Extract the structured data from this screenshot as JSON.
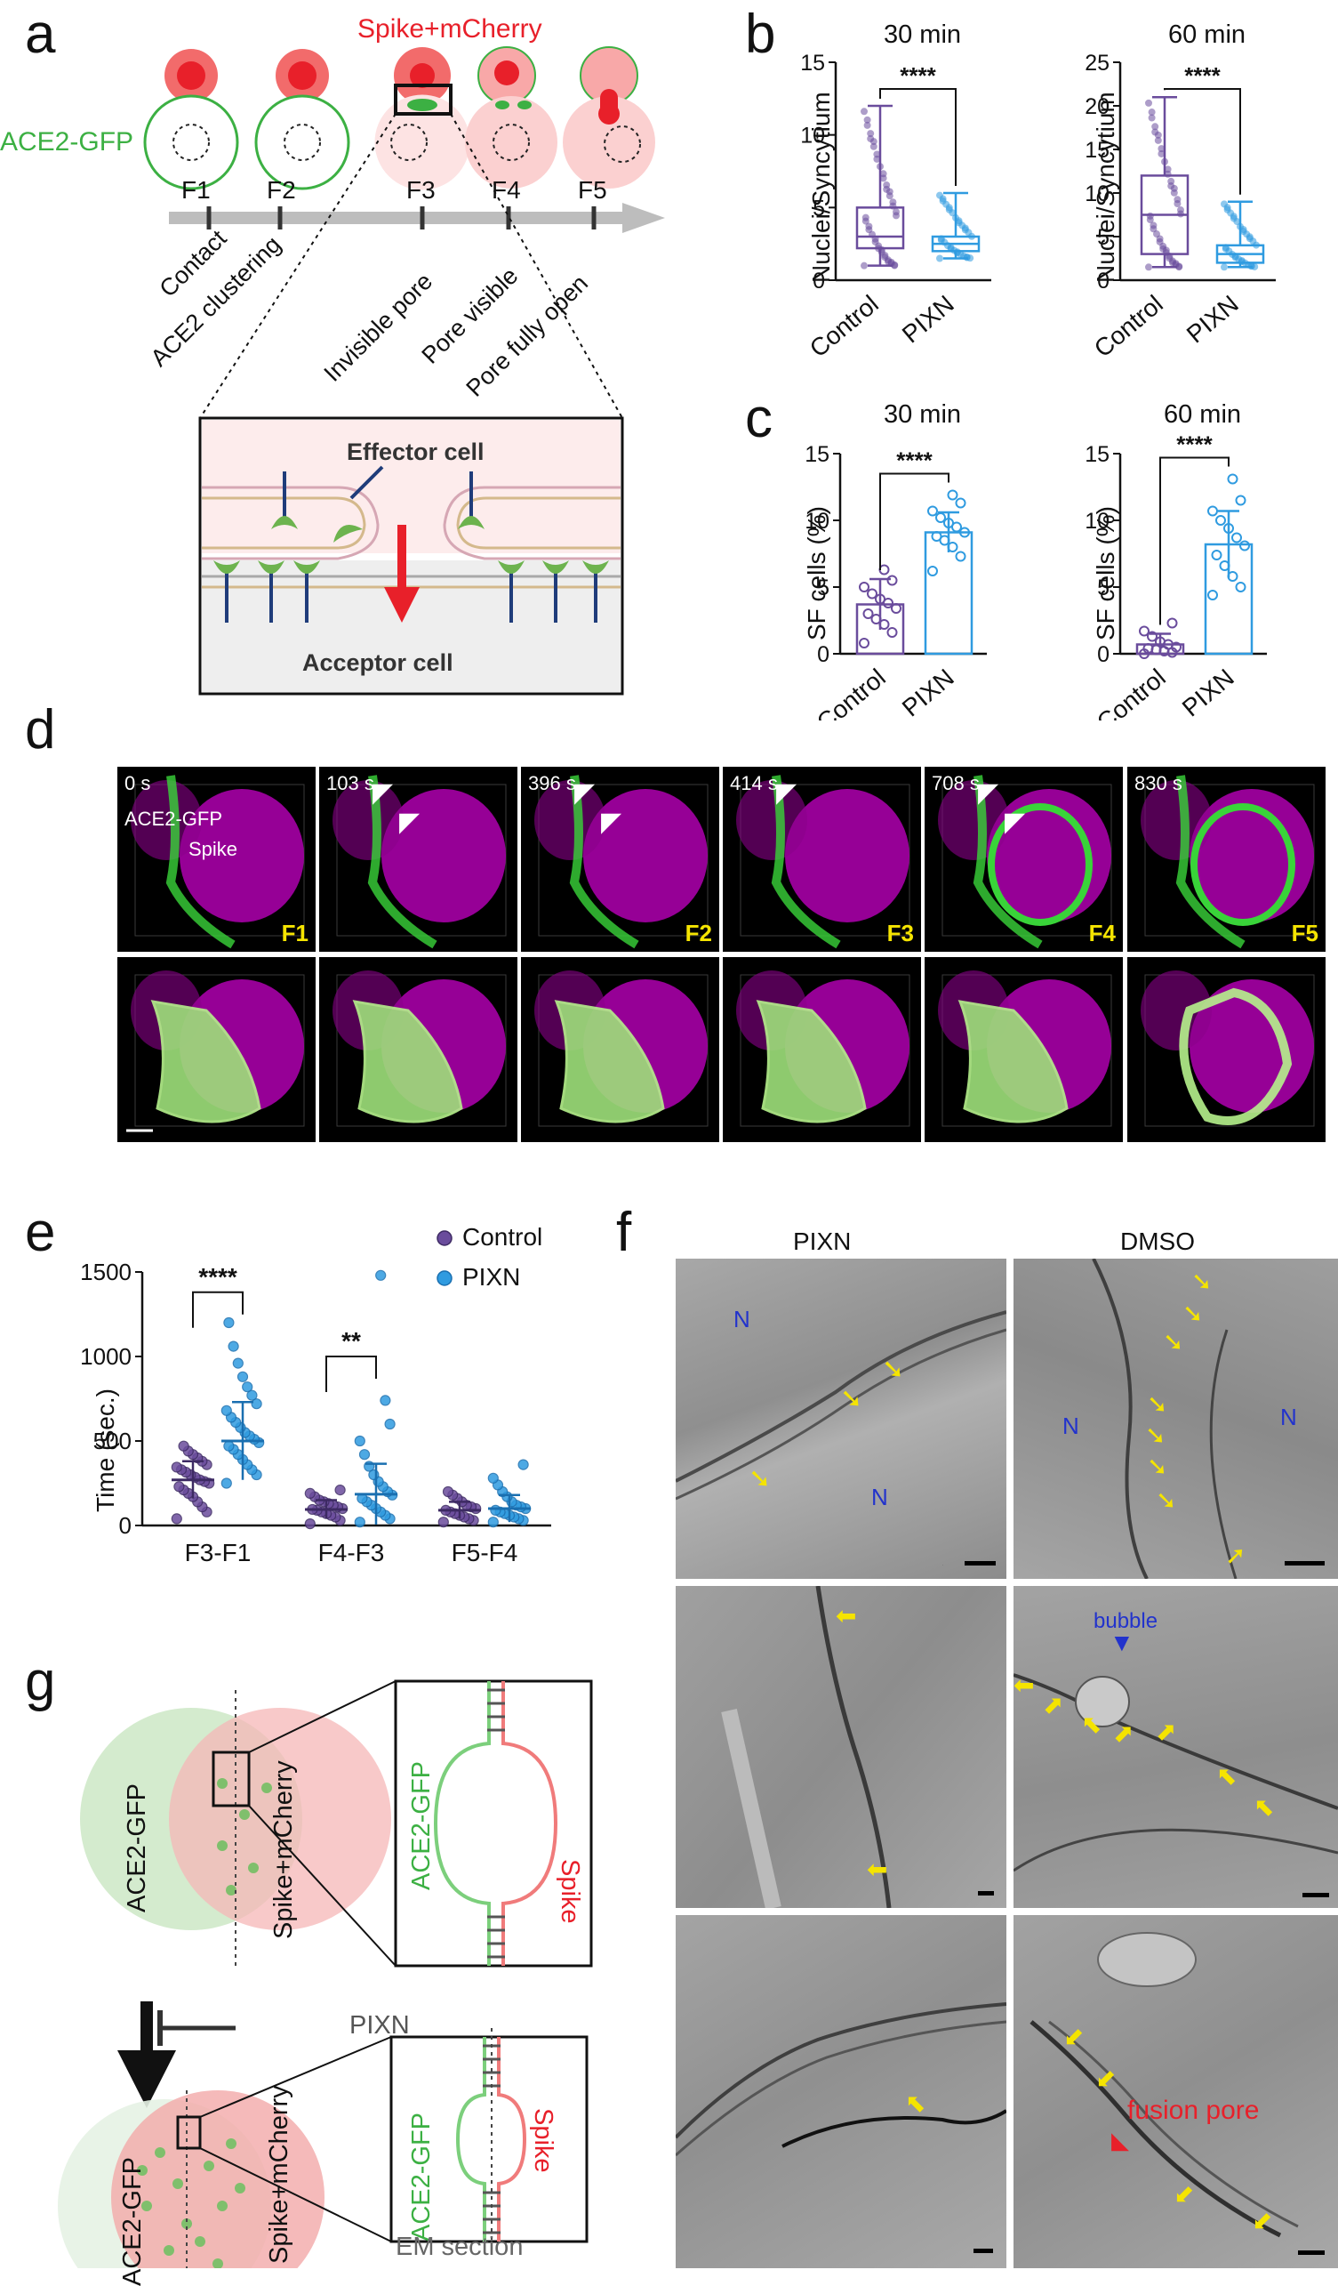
{
  "panel_labels": {
    "a": "a",
    "b": "b",
    "c": "c",
    "d": "d",
    "e": "e",
    "f": "f",
    "g": "g"
  },
  "panel_a": {
    "spike_label": "Spike+mCherry",
    "ace2_label": "ACE2-GFP",
    "stages": [
      "F1",
      "F2",
      "F3",
      "F4",
      "F5"
    ],
    "steps": [
      "Contact",
      "ACE2 clustering",
      "Invisible pore",
      "Pore visible",
      "Pore fully open"
    ],
    "effector": "Effector cell",
    "acceptor": "Acceptor cell",
    "colors": {
      "green": "#3cb043",
      "red": "#e8202a",
      "arrow": "#bdbdbd"
    }
  },
  "panel_b": {
    "ylabel": "Nuclei/Syncytium",
    "sig": "****",
    "charts": [
      {
        "title": "30 min",
        "type": "box",
        "categories": [
          "Control",
          "PIXN"
        ],
        "ylim": [
          0,
          15
        ],
        "yticks": [
          0,
          5,
          10,
          15
        ],
        "boxes": [
          {
            "name": "Control",
            "min": 1,
            "q1": 2.2,
            "median": 3,
            "q3": 5,
            "max": 12,
            "color": "#6a4c9c"
          },
          {
            "name": "PIXN",
            "min": 1.5,
            "q1": 2,
            "median": 2.5,
            "q3": 3,
            "max": 6,
            "color": "#2f9be0"
          }
        ]
      },
      {
        "title": "60 min",
        "type": "box",
        "categories": [
          "Control",
          "PIXN"
        ],
        "ylim": [
          0,
          25
        ],
        "yticks": [
          0,
          5,
          10,
          15,
          20,
          25
        ],
        "boxes": [
          {
            "name": "Control",
            "min": 1.5,
            "q1": 3,
            "median": 7.5,
            "q3": 12,
            "max": 21,
            "color": "#6a4c9c"
          },
          {
            "name": "PIXN",
            "min": 1.5,
            "q1": 2,
            "median": 3,
            "q3": 4,
            "max": 9,
            "color": "#2f9be0"
          }
        ]
      }
    ]
  },
  "panel_c": {
    "ylabel": "SF cells (%)",
    "sig": "****",
    "charts": [
      {
        "title": "30 min",
        "type": "bar",
        "categories": [
          "Control",
          "PIXN"
        ],
        "ylim": [
          0,
          15
        ],
        "yticks": [
          0,
          5,
          10,
          15
        ],
        "bars": [
          {
            "name": "Control",
            "value": 3.7,
            "sd": 1.9,
            "color": "#6a4c9c",
            "points": [
              0.8,
              1.6,
              2.2,
              2.6,
              3.0,
              3.4,
              3.8,
              4.1,
              4.5,
              5.0,
              5.5,
              6.3
            ]
          },
          {
            "name": "PIXN",
            "value": 9.1,
            "sd": 1.5,
            "color": "#2f9be0",
            "points": [
              6.2,
              7.3,
              8.0,
              8.5,
              8.8,
              9.1,
              9.5,
              9.8,
              10.2,
              10.7,
              11.3,
              11.9
            ]
          }
        ]
      },
      {
        "title": "60 min",
        "type": "bar",
        "categories": [
          "Control",
          "PIXN"
        ],
        "ylim": [
          0,
          15
        ],
        "yticks": [
          0,
          5,
          10,
          15
        ],
        "bars": [
          {
            "name": "Control",
            "value": 0.7,
            "sd": 0.8,
            "color": "#6a4c9c",
            "points": [
              0.0,
              0.1,
              0.2,
              0.3,
              0.4,
              0.5,
              0.7,
              0.9,
              1.3,
              1.7,
              2.3
            ]
          },
          {
            "name": "PIXN",
            "value": 8.2,
            "sd": 2.5,
            "color": "#2f9be0",
            "points": [
              4.4,
              5.0,
              5.8,
              6.6,
              7.4,
              8.1,
              8.7,
              9.4,
              10.0,
              10.7,
              11.5,
              13.1
            ]
          }
        ]
      }
    ]
  },
  "panel_d": {
    "times": [
      "0 s",
      "103 s",
      "396 s",
      "414 s",
      "708 s",
      "830 s"
    ],
    "stage_tags": [
      "F1",
      "",
      "F2",
      "F3",
      "F4",
      "F5"
    ],
    "ace2_label": "ACE2-GFP",
    "spike_label": "Spike"
  },
  "panel_e": {
    "chart_data": {
      "type": "scatter",
      "ylabel": "Time (sec.)",
      "categories": [
        "F3-F1",
        "F4-F3",
        "F5-F4"
      ],
      "ylim": [
        0,
        1500
      ],
      "yticks": [
        0,
        500,
        1000,
        1500
      ],
      "legend": [
        "Control",
        "PIXN"
      ],
      "sig": [
        {
          "pair": "F3-F1",
          "text": "****"
        },
        {
          "pair": "F4-F3",
          "text": "**"
        }
      ],
      "series": [
        {
          "name": "Control",
          "color": "#6a4c9c",
          "means": [
            270,
            95,
            90
          ],
          "sd": [
            110,
            55,
            50
          ],
          "points": [
            [
              40,
              80,
              110,
              140,
              170,
              190,
              210,
              230,
              250,
              260,
              270,
              285,
              300,
              315,
              330,
              345,
              360,
              380,
              400,
              420,
              440,
              470
            ],
            [
              10,
              30,
              50,
              60,
              70,
              80,
              90,
              95,
              100,
              110,
              120,
              130,
              140,
              150,
              170,
              190,
              210
            ],
            [
              20,
              30,
              40,
              50,
              60,
              70,
              80,
              90,
              100,
              110,
              120,
              140,
              160,
              180,
              200
            ]
          ]
        },
        {
          "name": "PIXN",
          "color": "#2f9be0",
          "means": [
            500,
            185,
            100
          ],
          "sd": [
            230,
            180,
            80
          ],
          "points": [
            [
              250,
              300,
              330,
              360,
              390,
              420,
              450,
              470,
              490,
              510,
              530,
              550,
              580,
              610,
              640,
              680,
              720,
              770,
              820,
              880,
              960,
              1060,
              1200
            ],
            [
              20,
              40,
              60,
              80,
              100,
              120,
              140,
              160,
              180,
              200,
              230,
              260,
              300,
              350,
              420,
              500,
              600,
              740,
              1480
            ],
            [
              20,
              30,
              40,
              50,
              60,
              70,
              80,
              90,
              100,
              110,
              120,
              140,
              170,
              200,
              240,
              280,
              360
            ]
          ]
        }
      ]
    }
  },
  "panel_f": {
    "col_labels": [
      "PIXN",
      "DMSO"
    ],
    "n_label": "N",
    "bubble": "bubble",
    "fusion_pore": "fusion pore"
  },
  "panel_g": {
    "ace2_label": "ACE2-GFP",
    "spike_label": "Spike+mCherry",
    "inset_ace2": "ACE2-GFP",
    "inset_spike": "Spike",
    "inhibitor": "PIXN",
    "em_section": "EM section"
  }
}
